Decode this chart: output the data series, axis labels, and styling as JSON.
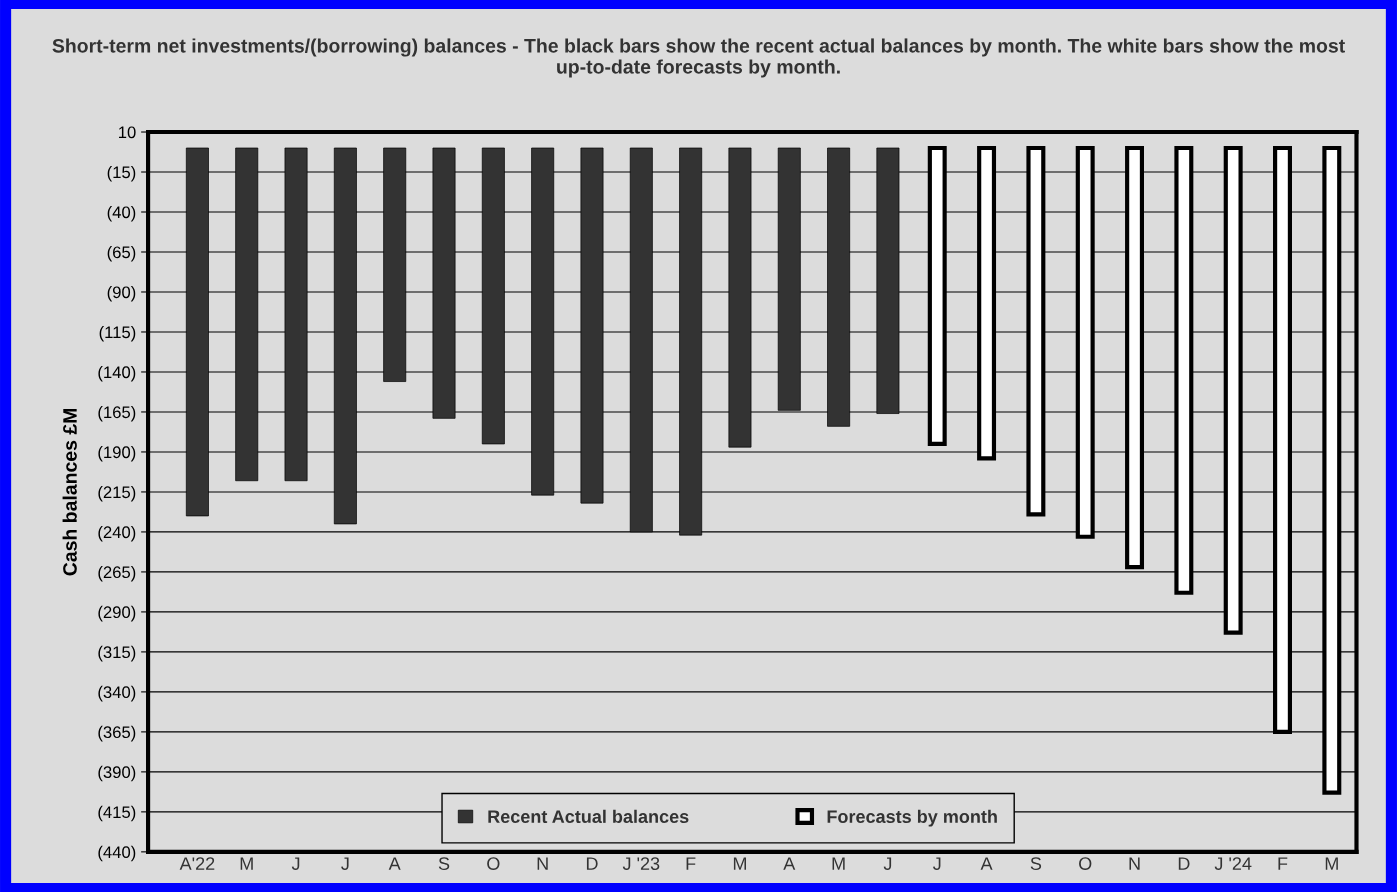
{
  "chart_data": {
    "type": "bar",
    "title": "Short-term net investments/(borrowing) balances - The black bars show the recent actual balances by month. The white bars show the most up-to-date forecasts by month.",
    "ylabel": "Cash balances £M",
    "categories": [
      "A'22",
      "M",
      "J",
      "J",
      "A",
      "S",
      "O",
      "N",
      "D",
      "J '23",
      "F",
      "M",
      "A",
      "M",
      "J",
      "J",
      "A",
      "S",
      "O",
      "N",
      "D",
      "J '24",
      "F",
      "M"
    ],
    "series": [
      {
        "name": "Recent Actual balances",
        "color": "#333333",
        "values": [
          -230,
          -208,
          -208,
          -235,
          -146,
          -169,
          -185,
          -217,
          -222,
          -240,
          -242,
          -187,
          -164,
          -174,
          -166,
          null,
          null,
          null,
          null,
          null,
          null,
          null,
          null,
          null
        ]
      },
      {
        "name": "Forecasts by month",
        "color": "#ffffff",
        "values": [
          null,
          null,
          null,
          null,
          null,
          null,
          null,
          null,
          null,
          null,
          null,
          null,
          null,
          null,
          null,
          -185,
          -194,
          -229,
          -243,
          -262,
          -278,
          -303,
          -365,
          -403
        ]
      }
    ],
    "ylim": [
      -440,
      10
    ],
    "yticks": [
      10,
      {
        "value": -15,
        "label": "(15)"
      },
      {
        "value": -40,
        "label": "(40)"
      },
      {
        "value": -65,
        "label": "(65)"
      },
      {
        "value": -90,
        "label": "(90)"
      },
      {
        "value": -115,
        "label": "(115)"
      },
      {
        "value": -140,
        "label": "(140)"
      },
      {
        "value": -165,
        "label": "(165)"
      },
      {
        "value": -190,
        "label": "(190)"
      },
      {
        "value": -215,
        "label": "(215)"
      },
      {
        "value": -240,
        "label": "(240)"
      },
      {
        "value": -265,
        "label": "(265)"
      },
      {
        "value": -290,
        "label": "(290)"
      },
      {
        "value": -315,
        "label": "(315)"
      },
      {
        "value": -340,
        "label": "(340)"
      },
      {
        "value": -365,
        "label": "(365)"
      },
      {
        "value": -390,
        "label": "(390)"
      },
      {
        "value": -415,
        "label": "(415)"
      },
      {
        "value": -440,
        "label": "(440)"
      }
    ],
    "grid": "y",
    "legend": "bottom"
  }
}
